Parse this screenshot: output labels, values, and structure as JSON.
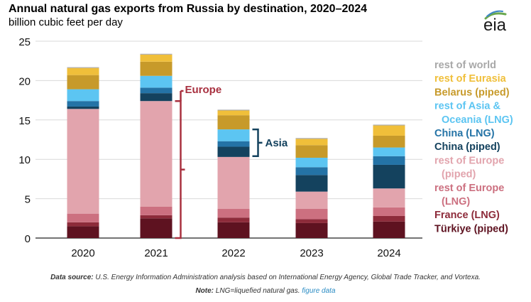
{
  "header": {
    "title": "Annual natural gas exports from Russia by destination, 2020–2024",
    "subtitle": "billion cubic feet per day",
    "logo_text": "eia"
  },
  "chart_data": {
    "type": "bar",
    "stacked": true,
    "title": "Annual natural gas exports from Russia by destination, 2020–2024",
    "ylabel": "billion cubic feet per day",
    "xlabel": "",
    "ylim": [
      0,
      25
    ],
    "yticks": [
      0,
      5,
      10,
      15,
      20,
      25
    ],
    "grid": true,
    "legend_position": "right",
    "categories": [
      "2020",
      "2021",
      "2022",
      "2023",
      "2024"
    ],
    "series": [
      {
        "name": "Türkiye (piped)",
        "color": "#5e1220",
        "values": [
          1.5,
          2.5,
          2.0,
          1.9,
          2.1
        ]
      },
      {
        "name": "France (LNG)",
        "color": "#8d2b3a",
        "values": [
          0.5,
          0.4,
          0.6,
          0.5,
          0.7
        ]
      },
      {
        "name": "rest of Europe (LNG)",
        "color": "#cc7080",
        "values": [
          1.1,
          1.1,
          1.1,
          1.3,
          1.1
        ]
      },
      {
        "name": "rest of Europe (piped)",
        "color": "#e2a4ad",
        "values": [
          13.3,
          13.4,
          6.6,
          2.2,
          2.4
        ]
      },
      {
        "name": "China (piped)",
        "color": "#14425e",
        "values": [
          0.3,
          1.0,
          1.3,
          2.1,
          3.0
        ]
      },
      {
        "name": "China (LNG)",
        "color": "#2473a6",
        "values": [
          0.7,
          0.7,
          0.7,
          1.0,
          1.1
        ]
      },
      {
        "name": "rest of Asia & Oceania (LNG)",
        "color": "#5cc5f2",
        "values": [
          1.5,
          1.5,
          1.5,
          1.2,
          1.1
        ]
      },
      {
        "name": "Belarus (piped)",
        "color": "#c79a2a",
        "values": [
          1.8,
          1.8,
          1.8,
          1.6,
          1.5
        ]
      },
      {
        "name": "rest of Eurasia",
        "color": "#f0bf3a",
        "values": [
          0.9,
          0.9,
          0.6,
          0.8,
          1.3
        ]
      },
      {
        "name": "rest of world",
        "color": "#a8a8a8",
        "values": [
          0.1,
          0.1,
          0.1,
          0.1,
          0.1
        ]
      }
    ],
    "legend": [
      {
        "lines": [
          "rest of world"
        ],
        "color": "#a8a8a8"
      },
      {
        "lines": [
          "rest of Eurasia"
        ],
        "color": "#f0bf3a"
      },
      {
        "lines": [
          "Belarus (piped)"
        ],
        "color": "#c79a2a"
      },
      {
        "lines": [
          "rest of Asia &",
          "Oceania (LNG)"
        ],
        "color": "#5cc5f2"
      },
      {
        "lines": [
          "China (LNG)"
        ],
        "color": "#2473a6"
      },
      {
        "lines": [
          "China (piped)"
        ],
        "color": "#14425e"
      },
      {
        "lines": [
          "rest of Europe",
          "(piped)"
        ],
        "color": "#e2a4ad"
      },
      {
        "lines": [
          "rest of Europe",
          "(LNG)"
        ],
        "color": "#cc7080"
      },
      {
        "lines": [
          "France (LNG)"
        ],
        "color": "#8d2b3a"
      },
      {
        "lines": [
          "Türkiye (piped)"
        ],
        "color": "#5e1220"
      }
    ],
    "annotations": [
      {
        "label": "Europe",
        "category": "2021",
        "from": 0,
        "to": 17.4,
        "color": "#a8303f"
      },
      {
        "label": "Asia",
        "category": "2022",
        "from": 10.4,
        "to": 13.8,
        "color": "#14425e"
      }
    ]
  },
  "footer": {
    "source_label": "Data source:",
    "source_text": " U.S. Energy Information Administration analysis based on International Energy Agency, Global Trade Tracker, and Vortexa.",
    "note_label": "Note:",
    "note_text": " LNG=liquefied natural gas. ",
    "link_text": "figure data"
  }
}
